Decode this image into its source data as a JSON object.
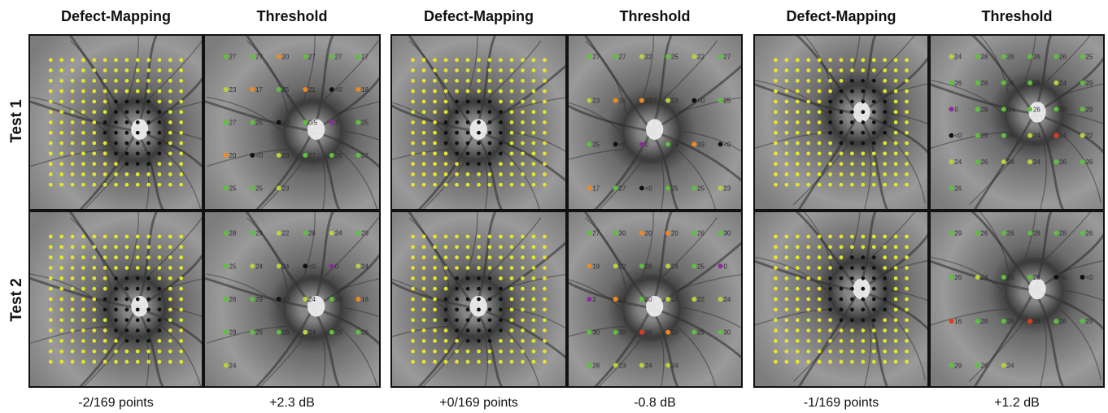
{
  "columns": [
    {
      "title": "Defect-Mapping"
    },
    {
      "title": "Threshold"
    },
    {
      "title": "Defect-Mapping"
    },
    {
      "title": "Threshold"
    },
    {
      "title": "Defect-Mapping"
    },
    {
      "title": "Threshold"
    }
  ],
  "rows": [
    {
      "label": "Test 1"
    },
    {
      "label": "Test 2"
    }
  ],
  "captions": [
    "-2/169 points",
    "+2.3 dB",
    "+0/169 points",
    "-0.8 dB",
    "-1/169 points",
    "+1.2 dB"
  ],
  "colors": {
    "normal_point": "#e6e62a",
    "defect_point": "#111111",
    "green": "#5cc23a",
    "yellow_green": "#b8d43a",
    "orange": "#f08a1e",
    "red": "#e23a22",
    "purple": "#8a2aa0"
  },
  "threshold_values": [
    [
      "27",
      "27",
      "20",
      "27",
      "27",
      "27",
      "23",
      "17",
      "25",
      "21",
      "<0",
      "18",
      "27",
      "25",
      "<0",
      "0/5",
      "2",
      "25",
      "20",
      "<0",
      "23",
      "27",
      "26",
      "27",
      "25",
      "25",
      "23"
    ],
    [
      "27",
      "27",
      "22",
      "25",
      "22",
      "27",
      "23",
      "19",
      "17",
      "23",
      "<0",
      "25",
      "25",
      "<0",
      "0",
      "25",
      "19",
      "<0",
      "17",
      "27",
      "<0",
      "25",
      "25",
      "23"
    ],
    [
      "24",
      "28",
      "26",
      "26",
      "26",
      "25",
      "26",
      "26",
      "26",
      "25",
      "24",
      "29",
      "0",
      "28",
      "0/5",
      "26",
      "28",
      "29",
      "<0",
      "29",
      "26",
      "24",
      "14",
      "22",
      "24",
      "26",
      "24",
      "24",
      "26",
      "26",
      "26"
    ],
    [
      "28",
      "29",
      "22",
      "26",
      "24",
      "29",
      "25",
      "24",
      "24",
      "<0",
      "0",
      "24",
      "26",
      "29",
      "<0",
      "24",
      "26",
      "18",
      "29",
      "26",
      "26",
      "24",
      "26",
      "26",
      "24"
    ],
    [
      "27",
      "30",
      "20",
      "20",
      "26",
      "30",
      "19",
      "22",
      "28",
      "24",
      "25",
      "0",
      "2",
      "18",
      "30",
      "24",
      "22",
      "24",
      "30",
      "30",
      "16",
      "19",
      "29",
      "30",
      "28",
      "23",
      "24",
      "24"
    ],
    [
      "29",
      "26",
      "26",
      "28",
      "28",
      "26",
      "26",
      "24",
      "26",
      "28",
      "<0",
      "<0",
      "16",
      "28",
      "28",
      "16",
      "26",
      "29",
      "29",
      "26",
      "24"
    ]
  ]
}
